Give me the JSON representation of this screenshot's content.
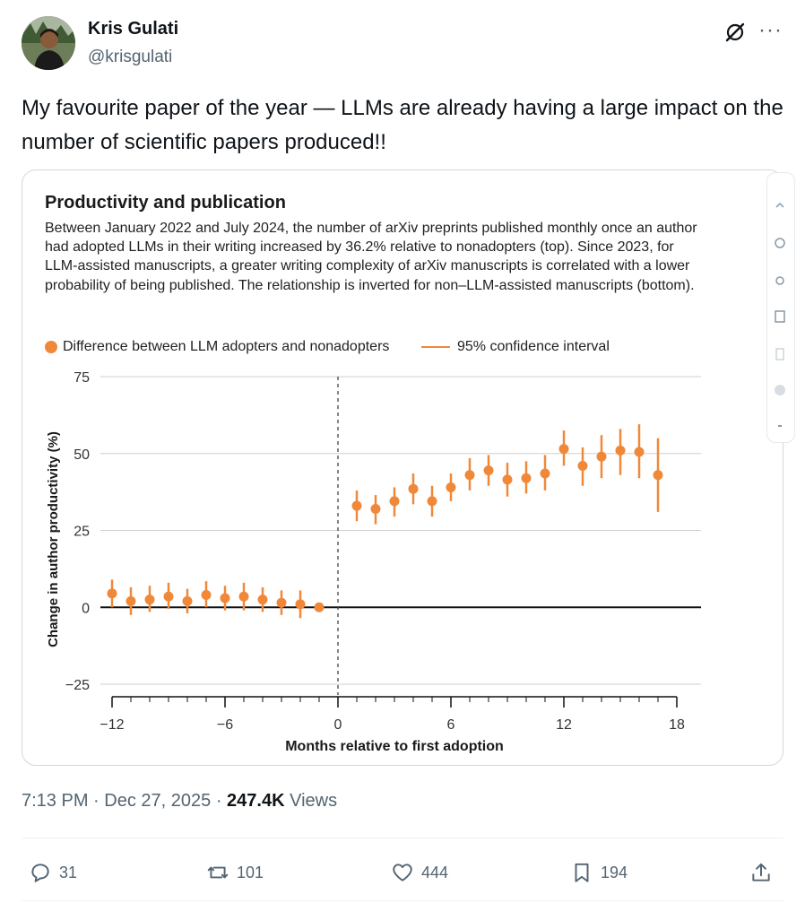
{
  "author": {
    "name": "Kris Gulati",
    "handle": "@krisgulati"
  },
  "tweet": {
    "text": "My favourite paper of the year — LLMs are already having a large impact on the number of scientific papers produced!!"
  },
  "figure": {
    "title": "Productivity and publication",
    "description": "Between January 2022 and July 2024, the number of arXiv preprints published monthly once an author had adopted LLMs in their writing increased by 36.2% relative to nonadopters (top). Since 2023, for LLM-assisted manuscripts, a greater writing complexity of arXiv manuscripts is correlated with a lower probability of being published. The relationship is inverted for non–LLM-assisted manuscripts (bottom)."
  },
  "chart_data": {
    "type": "scatter",
    "xlabel": "Months relative to first adoption",
    "ylabel": "Change in author productivity (%)",
    "xlim": [
      -12,
      18
    ],
    "ylim": [
      -25,
      75
    ],
    "xticks": [
      -12,
      -6,
      0,
      6,
      12,
      18
    ],
    "xtick_labels": [
      "−12",
      "−6",
      "0",
      "6",
      "12",
      "18"
    ],
    "yticks": [
      75,
      50,
      25,
      0,
      -25
    ],
    "ytick_labels": [
      "75",
      "50",
      "25",
      "0",
      "−25"
    ],
    "grid": true,
    "legend": [
      {
        "label": "Difference between LLM adopters and nonadopters",
        "kind": "point"
      },
      {
        "label": "95% confidence interval",
        "kind": "line"
      }
    ],
    "series": [
      {
        "name": "Difference between LLM adopters and nonadopters",
        "points": [
          {
            "x": -12,
            "y": 4.5,
            "lo": 0,
            "hi": 9
          },
          {
            "x": -11,
            "y": 2,
            "lo": -2.5,
            "hi": 6.5
          },
          {
            "x": -10,
            "y": 2.5,
            "lo": -1.5,
            "hi": 7
          },
          {
            "x": -9,
            "y": 3.5,
            "lo": -0.5,
            "hi": 8
          },
          {
            "x": -8,
            "y": 2,
            "lo": -2,
            "hi": 6
          },
          {
            "x": -7,
            "y": 4,
            "lo": 0,
            "hi": 8.5
          },
          {
            "x": -6,
            "y": 3,
            "lo": -1,
            "hi": 7
          },
          {
            "x": -5,
            "y": 3.5,
            "lo": -1,
            "hi": 8
          },
          {
            "x": -4,
            "y": 2.5,
            "lo": -1.5,
            "hi": 6.5
          },
          {
            "x": -3,
            "y": 1.5,
            "lo": -2.5,
            "hi": 5.5
          },
          {
            "x": -2,
            "y": 1,
            "lo": -3.5,
            "hi": 5.5
          },
          {
            "x": -1,
            "y": 0,
            "lo": 0,
            "hi": 0
          },
          {
            "x": 1,
            "y": 33,
            "lo": 28,
            "hi": 38
          },
          {
            "x": 2,
            "y": 32,
            "lo": 27,
            "hi": 36.5
          },
          {
            "x": 3,
            "y": 34.5,
            "lo": 29.5,
            "hi": 39
          },
          {
            "x": 4,
            "y": 38.5,
            "lo": 33.5,
            "hi": 43.5
          },
          {
            "x": 5,
            "y": 34.5,
            "lo": 29.5,
            "hi": 39.5
          },
          {
            "x": 6,
            "y": 39,
            "lo": 34.5,
            "hi": 43.5
          },
          {
            "x": 7,
            "y": 43,
            "lo": 38,
            "hi": 48.5
          },
          {
            "x": 8,
            "y": 44.5,
            "lo": 39.5,
            "hi": 49.5
          },
          {
            "x": 9,
            "y": 41.5,
            "lo": 36,
            "hi": 47
          },
          {
            "x": 10,
            "y": 42,
            "lo": 37,
            "hi": 47.5
          },
          {
            "x": 11,
            "y": 43.5,
            "lo": 38,
            "hi": 49.5
          },
          {
            "x": 12,
            "y": 51.5,
            "lo": 46,
            "hi": 57.5
          },
          {
            "x": 13,
            "y": 46,
            "lo": 39.5,
            "hi": 52
          },
          {
            "x": 14,
            "y": 49,
            "lo": 42,
            "hi": 56
          },
          {
            "x": 15,
            "y": 51,
            "lo": 43,
            "hi": 58
          },
          {
            "x": 16,
            "y": 50.5,
            "lo": 42,
            "hi": 59.5
          },
          {
            "x": 17,
            "y": 43,
            "lo": 31,
            "hi": 55
          }
        ]
      }
    ]
  },
  "meta": {
    "time": "7:13 PM",
    "date": "Dec 27, 2025",
    "views_count": "247.4K",
    "views_label": "Views"
  },
  "actions": {
    "replies": "31",
    "reposts": "101",
    "likes": "444",
    "bookmarks": "194"
  },
  "colors": {
    "accent": "#f0883a",
    "text_secondary": "#536471"
  }
}
